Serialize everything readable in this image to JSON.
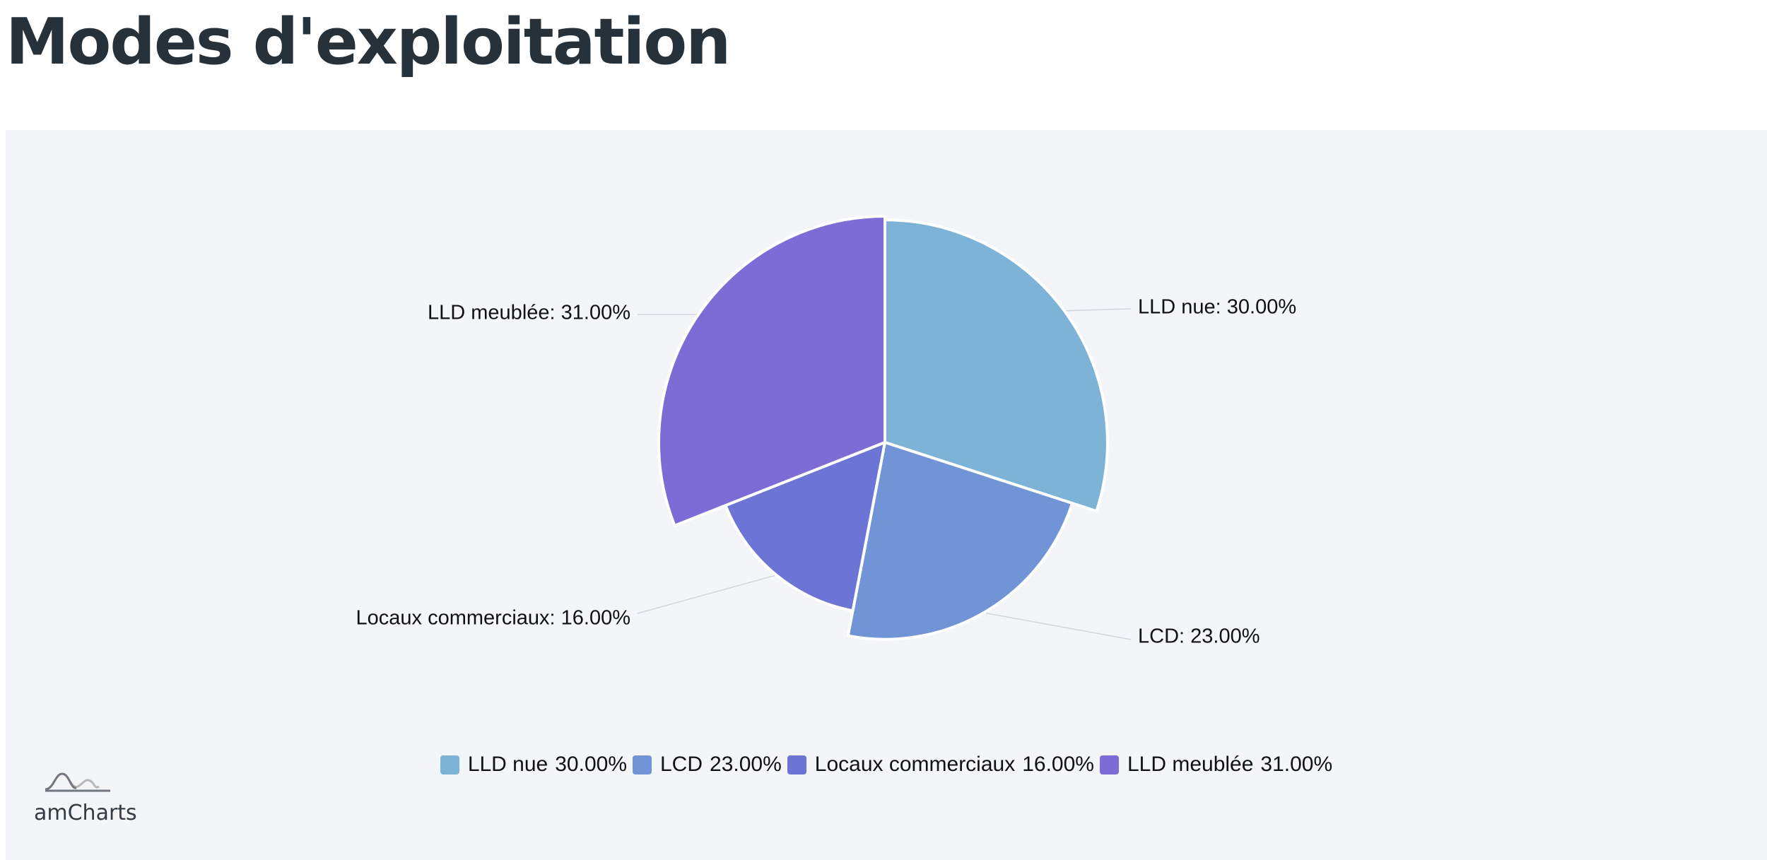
{
  "page": {
    "title": "Modes d'exploitation"
  },
  "chart_data": {
    "type": "pie",
    "title": "",
    "slices": [
      {
        "name": "LLD nue",
        "value": 30.0,
        "label": "LLD nue: 30.00%",
        "legend_value": "30.00%",
        "color": "#7db3d6"
      },
      {
        "name": "LCD",
        "value": 23.0,
        "label": "LCD: 23.00%",
        "legend_value": "23.00%",
        "color": "#7094d6"
      },
      {
        "name": "Locaux commerciaux",
        "value": 16.0,
        "label": "Locaux commerciaux: 16.00%",
        "legend_value": "16.00%",
        "color": "#6c75d6"
      },
      {
        "name": "LLD meublée",
        "value": 31.0,
        "label": "LLD meublée: 31.00%",
        "legend_value": "31.00%",
        "color": "#7d6cd6"
      }
    ],
    "variable_radius": true,
    "legend_position": "bottom-center"
  },
  "branding": {
    "logo_text": "amCharts"
  }
}
